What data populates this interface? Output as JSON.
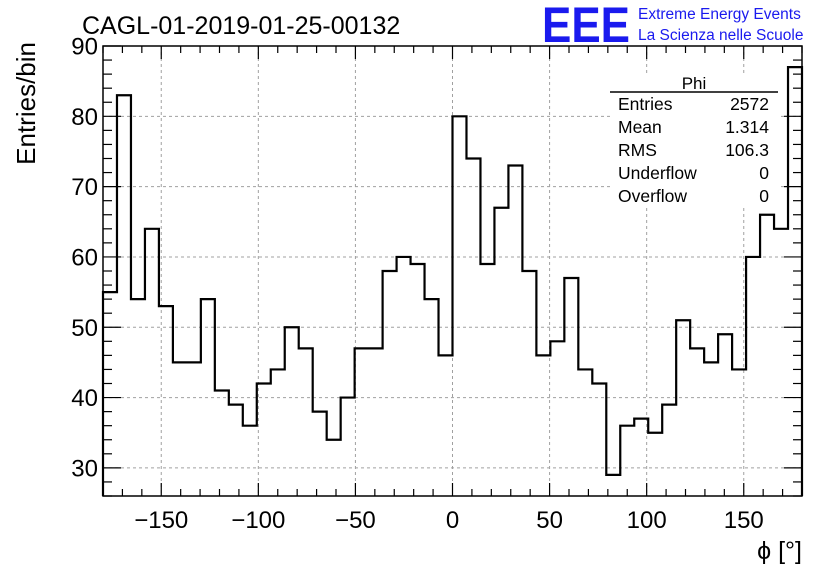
{
  "chart_data": {
    "type": "histogram",
    "title": "CAGL-01-2019-01-25-00132",
    "xlabel": "ϕ [°]",
    "ylabel": "Entries/bin",
    "xlim": [
      -180,
      180
    ],
    "ylim": [
      26,
      90
    ],
    "bin_width": 7.2,
    "x_ticks": [
      -150,
      -100,
      -50,
      0,
      50,
      100,
      150
    ],
    "x_tick_labels": [
      "−150",
      "−100",
      "−50",
      "0",
      "50",
      "100",
      "150"
    ],
    "y_ticks": [
      30,
      40,
      50,
      60,
      70,
      80,
      90
    ],
    "y_tick_labels": [
      "30",
      "40",
      "50",
      "60",
      "70",
      "80",
      "90"
    ],
    "grid": true,
    "values": [
      55,
      83,
      54,
      64,
      53,
      45,
      45,
      54,
      41,
      39,
      36,
      42,
      44,
      50,
      47,
      38,
      34,
      40,
      47,
      47,
      58,
      60,
      59,
      54,
      46,
      80,
      74,
      59,
      67,
      73,
      58,
      46,
      48,
      57,
      44,
      42,
      29,
      36,
      37,
      35,
      39,
      51,
      47,
      45,
      49,
      44,
      60,
      66,
      64,
      87
    ],
    "stats": {
      "name": "Phi",
      "rows": [
        {
          "label": "Entries",
          "value": "2572"
        },
        {
          "label": "Mean",
          "value": "1.314"
        },
        {
          "label": "RMS",
          "value": "106.3"
        },
        {
          "label": "Underflow",
          "value": "0"
        },
        {
          "label": "Overflow",
          "value": "0"
        }
      ]
    },
    "logo": {
      "text": "EEE",
      "line1": "Extreme Energy Events",
      "line2": "La Scienza nelle Scuole",
      "color": "#1a1aee"
    }
  }
}
